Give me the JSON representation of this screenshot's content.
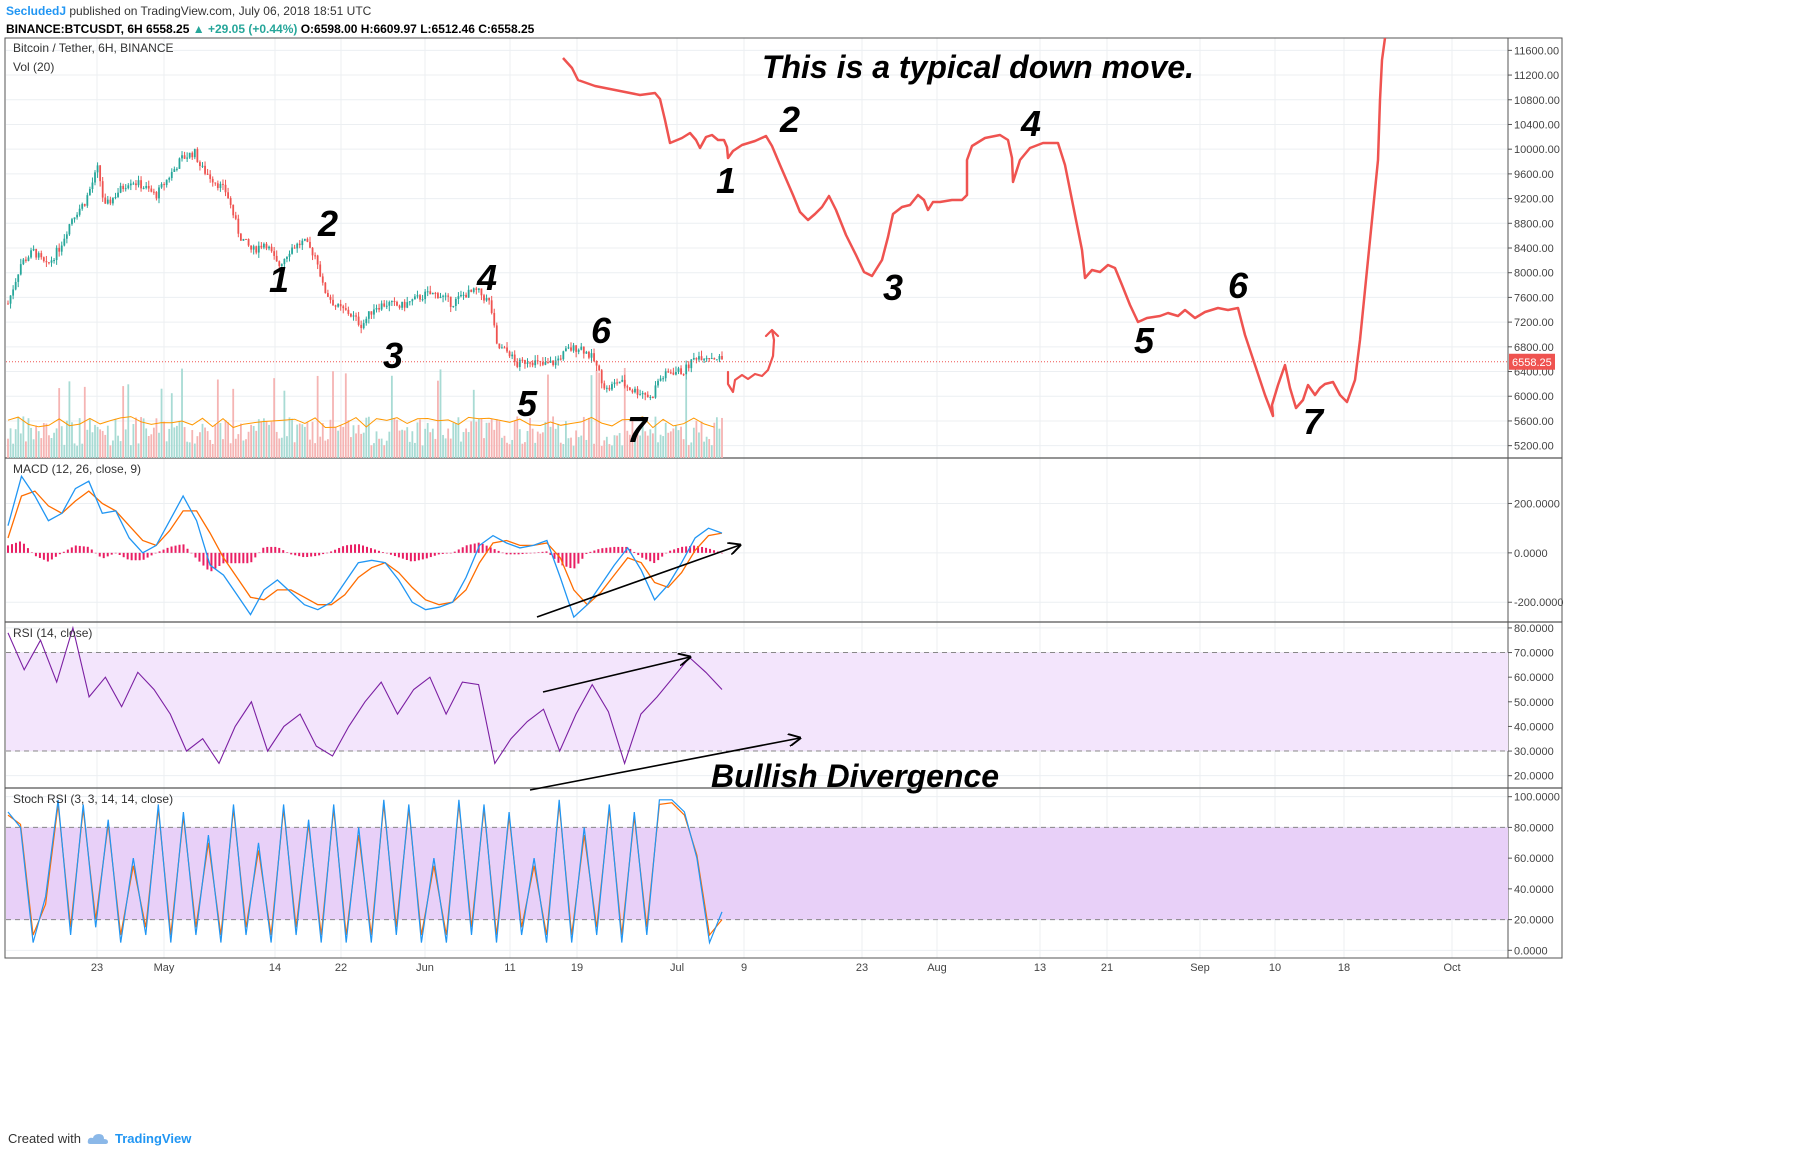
{
  "header": {
    "author": "SecludedJ",
    "published": "published on TradingView.com, July 06, 2018 18:51 UTC",
    "symbol": "BINANCE:BTCUSDT, 6H",
    "last": "6558.25",
    "change": "▲ +29.05 (+0.44%)",
    "o_label": "O:",
    "o": "6598.00",
    "h_label": "H:",
    "h": "6609.97",
    "l_label": "L:",
    "l": "6512.46",
    "c_label": "C:",
    "c": "6558.25"
  },
  "footer": {
    "created_with": "Created with",
    "brand": "TradingView"
  },
  "colors": {
    "up": "#26a69a",
    "down": "#ef5350",
    "annotation": "#ef5350",
    "macd": "#2196f3",
    "signal": "#ff6d00",
    "histogram": "#e91e63",
    "rsi": "#7b1fa2",
    "rsi_band": "#f3e5fc",
    "stoch_band": "#e8d0f8",
    "last_price_bg": "#ef5350"
  },
  "chart_data": [
    {
      "type": "candlestick",
      "title": "Bitcoin / Tether, 6H, BINANCE",
      "volume_label": "Vol (20)",
      "ylim": [
        5000,
        11800
      ],
      "y_ticks": [
        "5200.00",
        "5600.00",
        "6000.00",
        "6400.00",
        "6800.00",
        "7200.00",
        "7600.00",
        "8000.00",
        "8400.00",
        "8800.00",
        "9200.00",
        "9600.00",
        "10000.00",
        "10400.00",
        "10800.00",
        "11200.00",
        "11600.00"
      ],
      "last_price": "6558.25",
      "x_ticks": [
        "23",
        "May",
        "14",
        "22",
        "Jun",
        "11",
        "19",
        "Jul",
        "9",
        "23",
        "Aug",
        "13",
        "21",
        "Sep",
        "10",
        "18",
        "Oct"
      ],
      "price_path": [
        [
          0,
          7500
        ],
        [
          2,
          8150
        ],
        [
          4,
          8350
        ],
        [
          6,
          8100
        ],
        [
          8,
          8400
        ],
        [
          10,
          8900
        ],
        [
          12,
          9150
        ],
        [
          14,
          9700
        ],
        [
          15,
          9050
        ],
        [
          17,
          9300
        ],
        [
          19,
          9500
        ],
        [
          21,
          9400
        ],
        [
          23,
          9250
        ],
        [
          25,
          9550
        ],
        [
          27,
          9850
        ],
        [
          29,
          9950
        ],
        [
          30,
          9700
        ],
        [
          32,
          9500
        ],
        [
          34,
          9300
        ],
        [
          36,
          8600
        ],
        [
          38,
          8350
        ],
        [
          40,
          8500
        ],
        [
          42,
          8100
        ],
        [
          44,
          8400
        ],
        [
          46,
          8500
        ],
        [
          48,
          8250
        ],
        [
          49,
          7750
        ],
        [
          51,
          7450
        ],
        [
          53,
          7350
        ],
        [
          55,
          7150
        ],
        [
          57,
          7450
        ],
        [
          59,
          7500
        ],
        [
          61,
          7450
        ],
        [
          63,
          7550
        ],
        [
          65,
          7650
        ],
        [
          67,
          7650
        ],
        [
          69,
          7500
        ],
        [
          71,
          7650
        ],
        [
          73,
          7700
        ],
        [
          75,
          7500
        ],
        [
          76,
          6800
        ],
        [
          78,
          6700
        ],
        [
          79,
          6500
        ],
        [
          81,
          6600
        ],
        [
          83,
          6500
        ],
        [
          85,
          6550
        ],
        [
          87,
          6750
        ],
        [
          89,
          6800
        ],
        [
          91,
          6600
        ],
        [
          93,
          6100
        ],
        [
          95,
          6250
        ],
        [
          97,
          6100
        ],
        [
          99,
          6050
        ],
        [
          100,
          5950
        ],
        [
          101,
          6250
        ],
        [
          103,
          6400
        ],
        [
          105,
          6400
        ],
        [
          107,
          6650
        ],
        [
          109,
          6650
        ],
        [
          111,
          6600
        ]
      ],
      "wave_labels": [
        "1",
        "2",
        "3",
        "4",
        "5",
        "6",
        "7"
      ],
      "projection_wave_labels": [
        "1",
        "2",
        "3",
        "4",
        "5",
        "6",
        "7"
      ],
      "annotation_text": "This is a typical down move."
    },
    {
      "type": "line",
      "title": "MACD (12, 26, close, 9)",
      "ylim": [
        -280,
        380
      ],
      "y_ticks": [
        "200.0000",
        "0.0000",
        "-200.0000"
      ],
      "series": [
        {
          "name": "MACD",
          "values": [
            110,
            310,
            230,
            130,
            160,
            260,
            290,
            160,
            170,
            60,
            0,
            30,
            130,
            230,
            130,
            -50,
            -90,
            -170,
            -250,
            -150,
            -110,
            -160,
            -210,
            -230,
            -200,
            -120,
            -40,
            -30,
            -40,
            -110,
            -200,
            -230,
            -220,
            -200,
            -100,
            30,
            70,
            40,
            20,
            30,
            50,
            -100,
            -260,
            -210,
            -130,
            -50,
            20,
            -70,
            -190,
            -130,
            -40,
            60,
            100,
            80
          ]
        },
        {
          "name": "Signal",
          "values": [
            60,
            230,
            250,
            190,
            160,
            210,
            250,
            200,
            170,
            110,
            50,
            30,
            90,
            170,
            170,
            80,
            -20,
            -100,
            -180,
            -190,
            -150,
            -150,
            -180,
            -210,
            -210,
            -170,
            -100,
            -60,
            -40,
            -80,
            -140,
            -190,
            -210,
            -200,
            -150,
            -40,
            40,
            50,
            30,
            30,
            40,
            -20,
            -150,
            -210,
            -160,
            -90,
            -20,
            -40,
            -120,
            -140,
            -80,
            10,
            70,
            80
          ]
        }
      ]
    },
    {
      "type": "line",
      "title": "RSI (14, close)",
      "ylim": [
        15,
        82
      ],
      "y_ticks": [
        "80.0000",
        "70.0000",
        "60.0000",
        "50.0000",
        "40.0000",
        "30.0000",
        "20.0000"
      ],
      "band": [
        30,
        70
      ],
      "series": [
        {
          "name": "RSI",
          "values": [
            78,
            63,
            75,
            58,
            80,
            52,
            60,
            48,
            62,
            55,
            45,
            30,
            35,
            25,
            40,
            50,
            30,
            40,
            45,
            32,
            28,
            40,
            50,
            58,
            45,
            55,
            60,
            45,
            58,
            57,
            25,
            35,
            42,
            47,
            30,
            45,
            57,
            46,
            25,
            45,
            52,
            60,
            68,
            62,
            55
          ]
        }
      ]
    },
    {
      "type": "line",
      "title": "Stoch RSI (3, 3, 14, 14, close)",
      "ylim": [
        -5,
        105
      ],
      "y_ticks": [
        "100.0000",
        "80.0000",
        "60.0000",
        "40.0000",
        "20.0000",
        "0.0000"
      ],
      "band": [
        20,
        80
      ],
      "series": [
        {
          "name": "K",
          "values": [
            90,
            80,
            5,
            35,
            98,
            10,
            95,
            15,
            85,
            5,
            60,
            10,
            95,
            5,
            90,
            10,
            75,
            5,
            95,
            10,
            70,
            5,
            95,
            10,
            85,
            5,
            95,
            5,
            80,
            5,
            98,
            10,
            95,
            5,
            60,
            5,
            98,
            10,
            95,
            5,
            90,
            10,
            60,
            5,
            98,
            5,
            80,
            10,
            95,
            5,
            90,
            10,
            98,
            98,
            90,
            60,
            5,
            25
          ]
        },
        {
          "name": "D",
          "values": [
            88,
            82,
            10,
            30,
            95,
            15,
            92,
            20,
            82,
            10,
            55,
            15,
            92,
            10,
            87,
            15,
            70,
            10,
            92,
            15,
            65,
            10,
            92,
            15,
            82,
            10,
            92,
            10,
            75,
            10,
            95,
            15,
            92,
            10,
            55,
            10,
            95,
            15,
            92,
            10,
            87,
            15,
            55,
            10,
            95,
            10,
            75,
            15,
            92,
            10,
            87,
            15,
            95,
            96,
            88,
            62,
            10,
            20
          ]
        }
      ]
    },
    {
      "type": "line",
      "title": "",
      "note": "Bullish Divergence"
    }
  ]
}
